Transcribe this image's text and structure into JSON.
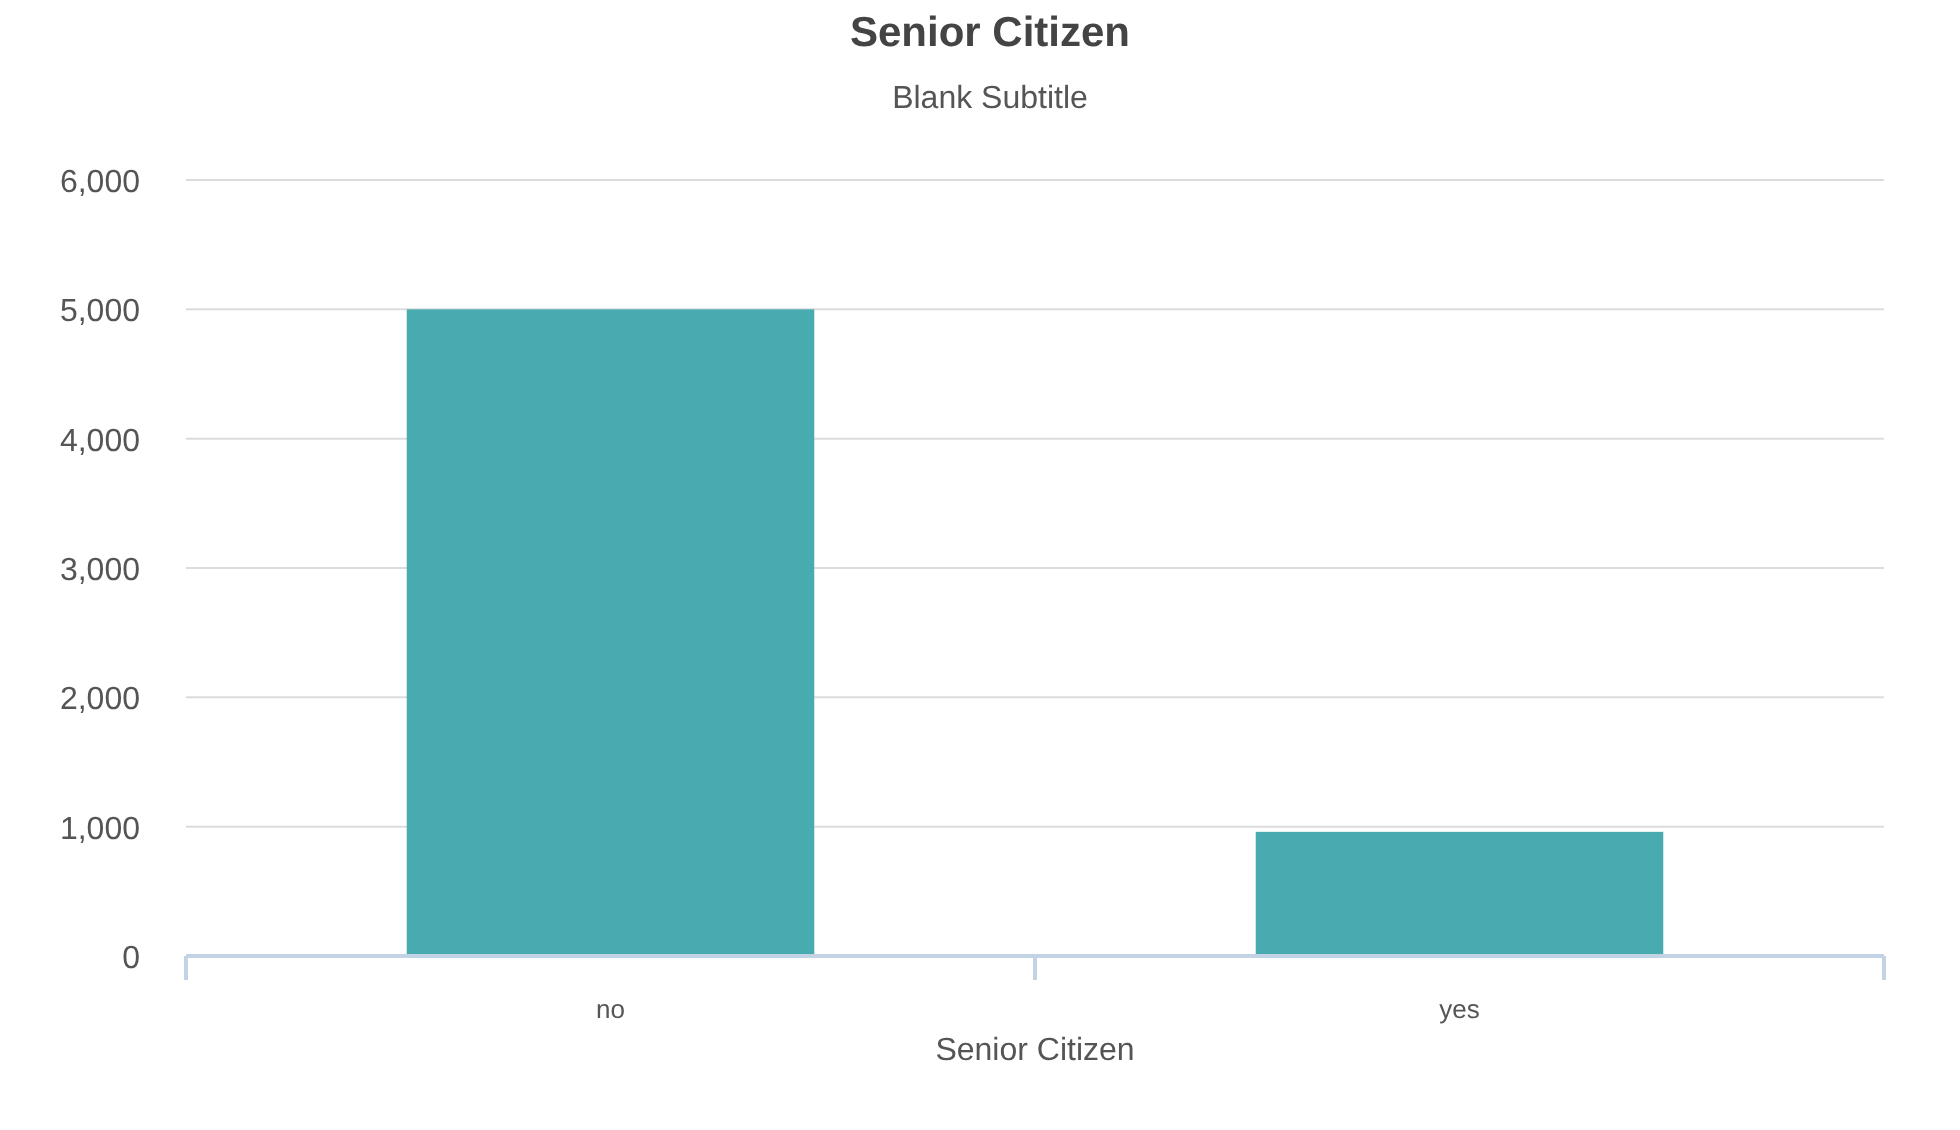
{
  "chart_data": {
    "type": "bar",
    "title": "Senior Citizen",
    "subtitle": "Blank Subtitle",
    "xlabel": "Senior Citizen",
    "categories": [
      "no",
      "yes"
    ],
    "values": [
      5000,
      960
    ],
    "color": "#47abb0",
    "ylim": [
      0,
      6000
    ],
    "yticks": [
      {
        "value": 0,
        "label": "0"
      },
      {
        "value": 1000,
        "label": "1,000"
      },
      {
        "value": 2000,
        "label": "2,000"
      },
      {
        "value": 3000,
        "label": "3,000"
      },
      {
        "value": 4000,
        "label": "4,000"
      },
      {
        "value": 5000,
        "label": "5,000"
      },
      {
        "value": 6000,
        "label": "6,000"
      }
    ],
    "grid": "y"
  }
}
